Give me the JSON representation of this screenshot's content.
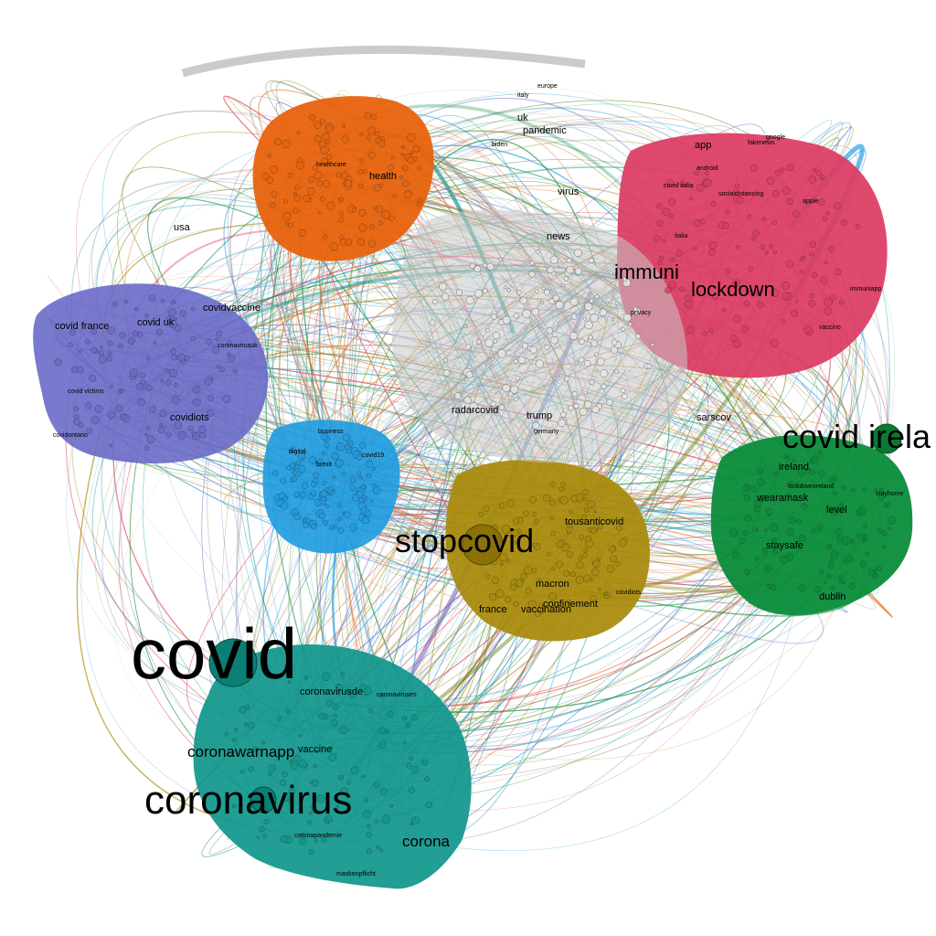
{
  "clusters": [
    {
      "id": "orange",
      "color": "#e8620c"
    },
    {
      "id": "crimson",
      "color": "#dc3b62"
    },
    {
      "id": "indigo",
      "color": "#6a6ac8"
    },
    {
      "id": "sky",
      "color": "#1e9be0"
    },
    {
      "id": "olive",
      "color": "#a88a0a"
    },
    {
      "id": "green",
      "color": "#0a8c3a"
    },
    {
      "id": "teal",
      "color": "#0f968c"
    },
    {
      "id": "grey",
      "color": "#c8c8c8"
    }
  ],
  "labels": {
    "covid": "covid",
    "coronavirus": "coronavirus",
    "stopcovid": "stopcovid",
    "covid_ireland": "covid irela",
    "lockdown": "lockdown",
    "immuni": "immuni",
    "coronawarnapp": "coronawarnapp",
    "corona": "corona",
    "ireland": "ireland",
    "wearamask": "wearamask",
    "covid_uk": "covid uk",
    "covidvaccine": "covidvaccine",
    "covidiots": "covidiots",
    "covid_france": "covid france",
    "tousanticovid": "tousanticovid",
    "trump": "trump",
    "radarcovid": "radarcovid",
    "sarscov": "sarscov",
    "app": "app",
    "health": "health",
    "usa": "usa",
    "virus": "virus",
    "news": "news",
    "pandemic": "pandemic",
    "uk": "uk",
    "vaccine": "vaccine",
    "coronavirusde": "coronavirusde",
    "staysafe": "staysafe",
    "dublin": "dublin",
    "level": "level",
    "vaccination": "vaccination",
    "france": "france",
    "covid_italia": "covid italia",
    "immuniapp": "immuniapp",
    "privacy": "privacy",
    "stayhome": "stayhome",
    "lockdownireland": "lockdownireland",
    "socialdistancing": "socialdistancing",
    "covidvictims": "covid victims",
    "covidontario": "covidontario",
    "coronavirusuk": "coronavirusuk",
    "macron": "macron",
    "confinement": "confinement",
    "italia": "italia",
    "apple": "apple",
    "android": "android",
    "google": "google",
    "fakenews": "fakenews",
    "vaccino": "vaccino",
    "maskenpflicht": "maskenpflicht",
    "coronapandemie": "coronapandemie",
    "germany": "germany",
    "biden": "biden",
    "italy": "italy",
    "healthcare": "healthcare",
    "europe": "europe",
    "covidiots2": "covidiots",
    "brexit": "brexit",
    "business": "business",
    "digital": "digital",
    "covid19": "covid19",
    "coronaviruses": "coronaviruses"
  }
}
